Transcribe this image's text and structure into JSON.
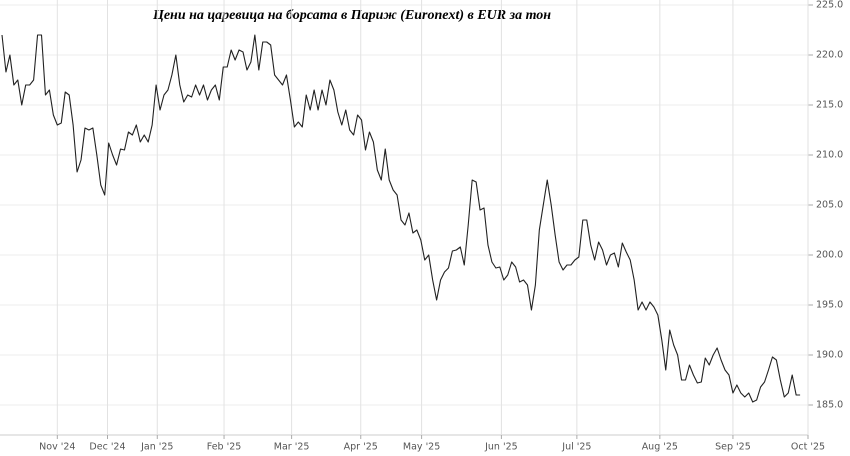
{
  "chart_data": {
    "type": "line",
    "title": "Цени на царевица на борсата в Париж (Euronext) в EUR за тон",
    "series": [
      {
        "name": "Euronext",
        "color": "#222222",
        "values": [
          222.0,
          218.3,
          220.0,
          217.0,
          217.5,
          215.0,
          217.0,
          217.0,
          217.5,
          222.0,
          222.0,
          216.0,
          216.5,
          214.0,
          213.0,
          213.2,
          216.3,
          216.0,
          213.0,
          208.3,
          209.5,
          212.7,
          212.5,
          212.7,
          210.0,
          207.0,
          206.0,
          211.2,
          210.0,
          209.0,
          210.6,
          210.5,
          212.3,
          212.0,
          213.0,
          211.3,
          212.0,
          211.3,
          213.0,
          217.0,
          214.5,
          216.0,
          216.5,
          218.0,
          220.0,
          217.0,
          215.3,
          216.0,
          215.8,
          217.0,
          216.0,
          217.0,
          215.5,
          216.5,
          217.0,
          215.5,
          218.8,
          218.8,
          220.5,
          219.5,
          220.5,
          220.3,
          218.5,
          219.3,
          222.0,
          218.5,
          221.3,
          221.3,
          221.0,
          218.0,
          217.5,
          217.0,
          218.0,
          215.5,
          212.8,
          213.3,
          212.8,
          216.0,
          214.5,
          216.5,
          214.5,
          216.5,
          215.0,
          217.5,
          216.5,
          214.3,
          213.0,
          214.5,
          212.5,
          212.0,
          214.0,
          213.5,
          210.5,
          212.3,
          211.3,
          208.5,
          207.5,
          210.6,
          207.5,
          206.5,
          206.0,
          203.5,
          203.0,
          204.2,
          202.2,
          202.5,
          201.5,
          199.5,
          200.0,
          197.5,
          195.5,
          197.5,
          198.3,
          198.7,
          200.4,
          200.5,
          200.8,
          199.0,
          203.0,
          207.5,
          207.3,
          204.5,
          204.7,
          201.0,
          199.3,
          198.7,
          198.8,
          197.5,
          198.0,
          199.3,
          198.8,
          197.3,
          197.5,
          197.0,
          194.5,
          197.0,
          202.5,
          205.0,
          207.5,
          205.0,
          202.0,
          199.3,
          198.5,
          199.0,
          199.0,
          199.5,
          199.8,
          203.5,
          203.5,
          201.0,
          199.5,
          201.3,
          200.5,
          199.0,
          200.0,
          200.2,
          198.8,
          201.2,
          200.3,
          199.5,
          197.5,
          194.5,
          195.3,
          194.5,
          195.3,
          194.8,
          194.0,
          191.5,
          188.5,
          192.5,
          191.0,
          190.0,
          187.5,
          187.5,
          189.0,
          188.0,
          187.2,
          187.3,
          189.7,
          189.0,
          190.0,
          190.7,
          189.5,
          188.5,
          188.0,
          186.2,
          187.0,
          186.2,
          185.8,
          186.2,
          185.3,
          185.5,
          186.8,
          187.3,
          188.5,
          189.8,
          189.5,
          187.5,
          185.8,
          186.2,
          188.0,
          186.0,
          186.0
        ]
      }
    ],
    "xlim": [
      0,
      204
    ],
    "xticks": [
      {
        "value": 14,
        "label": "Nov '24"
      },
      {
        "value": 26.7,
        "label": "Dec '24"
      },
      {
        "value": 39.3,
        "label": "Jan '25"
      },
      {
        "value": 56.2,
        "label": "Feb '25"
      },
      {
        "value": 73.3,
        "label": "Mar '25"
      },
      {
        "value": 90.8,
        "label": "Apr '25"
      },
      {
        "value": 106.2,
        "label": "May '25"
      },
      {
        "value": 126.4,
        "label": "Jun '25"
      },
      {
        "value": 145.5,
        "label": "Jul '25"
      },
      {
        "value": 166.5,
        "label": "Aug '25"
      },
      {
        "value": 185,
        "label": "Sep '25"
      },
      {
        "value": 204,
        "label": "Oct '25"
      }
    ],
    "ylim": [
      182,
      225.5
    ],
    "yticks": [
      {
        "value": 185,
        "label": "185.0"
      },
      {
        "value": 190,
        "label": "190.0"
      },
      {
        "value": 195,
        "label": "195.0"
      },
      {
        "value": 200,
        "label": "200.0"
      },
      {
        "value": 205,
        "label": "205.0"
      },
      {
        "value": 210,
        "label": "210.0"
      },
      {
        "value": 215,
        "label": "215.0"
      },
      {
        "value": 220,
        "label": "220.0"
      },
      {
        "value": 225,
        "label": "225.0"
      }
    ],
    "grid": true
  }
}
